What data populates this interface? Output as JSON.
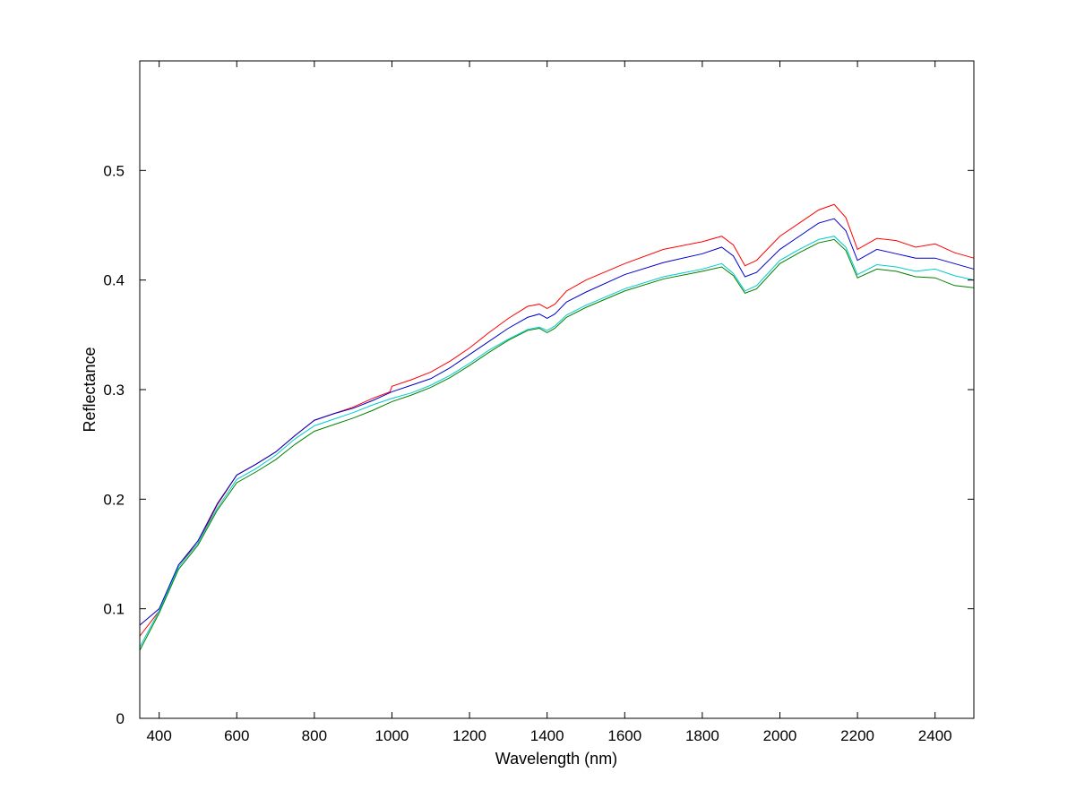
{
  "chart_data": {
    "type": "line",
    "title": "",
    "xlabel": "Wavelength (nm)",
    "ylabel": "Reflectance",
    "xlim": [
      350,
      2500
    ],
    "ylim": [
      0,
      0.6
    ],
    "xticks": [
      400,
      600,
      800,
      1000,
      1200,
      1400,
      1600,
      1800,
      2000,
      2200,
      2400
    ],
    "yticks": [
      0,
      0.1,
      0.2,
      0.3,
      0.4,
      0.5
    ],
    "grid": false,
    "legend": "none",
    "series": [
      {
        "color": "#ff0000",
        "points": [
          [
            350,
            0.075
          ],
          [
            400,
            0.098
          ],
          [
            450,
            0.14
          ],
          [
            500,
            0.16
          ],
          [
            550,
            0.195
          ],
          [
            600,
            0.222
          ],
          [
            650,
            0.232
          ],
          [
            700,
            0.243
          ],
          [
            750,
            0.258
          ],
          [
            800,
            0.272
          ],
          [
            850,
            0.278
          ],
          [
            900,
            0.284
          ],
          [
            950,
            0.292
          ],
          [
            995,
            0.298
          ],
          [
            1000,
            0.303
          ],
          [
            1050,
            0.309
          ],
          [
            1100,
            0.316
          ],
          [
            1150,
            0.326
          ],
          [
            1200,
            0.338
          ],
          [
            1250,
            0.352
          ],
          [
            1300,
            0.365
          ],
          [
            1350,
            0.376
          ],
          [
            1380,
            0.378
          ],
          [
            1400,
            0.374
          ],
          [
            1420,
            0.378
          ],
          [
            1450,
            0.39
          ],
          [
            1500,
            0.4
          ],
          [
            1600,
            0.415
          ],
          [
            1700,
            0.428
          ],
          [
            1800,
            0.435
          ],
          [
            1850,
            0.44
          ],
          [
            1880,
            0.432
          ],
          [
            1910,
            0.413
          ],
          [
            1940,
            0.418
          ],
          [
            2000,
            0.44
          ],
          [
            2050,
            0.452
          ],
          [
            2100,
            0.464
          ],
          [
            2140,
            0.469
          ],
          [
            2170,
            0.457
          ],
          [
            2200,
            0.428
          ],
          [
            2250,
            0.438
          ],
          [
            2300,
            0.436
          ],
          [
            2350,
            0.43
          ],
          [
            2400,
            0.433
          ],
          [
            2450,
            0.425
          ],
          [
            2500,
            0.42
          ]
        ]
      },
      {
        "color": "#0000cc",
        "points": [
          [
            350,
            0.085
          ],
          [
            400,
            0.1
          ],
          [
            450,
            0.14
          ],
          [
            500,
            0.162
          ],
          [
            550,
            0.196
          ],
          [
            600,
            0.222
          ],
          [
            650,
            0.232
          ],
          [
            700,
            0.243
          ],
          [
            750,
            0.258
          ],
          [
            800,
            0.272
          ],
          [
            850,
            0.278
          ],
          [
            900,
            0.283
          ],
          [
            950,
            0.29
          ],
          [
            1000,
            0.298
          ],
          [
            1050,
            0.304
          ],
          [
            1100,
            0.31
          ],
          [
            1150,
            0.32
          ],
          [
            1200,
            0.332
          ],
          [
            1250,
            0.344
          ],
          [
            1300,
            0.356
          ],
          [
            1350,
            0.366
          ],
          [
            1380,
            0.369
          ],
          [
            1400,
            0.365
          ],
          [
            1420,
            0.369
          ],
          [
            1450,
            0.38
          ],
          [
            1500,
            0.389
          ],
          [
            1600,
            0.405
          ],
          [
            1700,
            0.416
          ],
          [
            1800,
            0.424
          ],
          [
            1850,
            0.43
          ],
          [
            1880,
            0.422
          ],
          [
            1910,
            0.403
          ],
          [
            1940,
            0.407
          ],
          [
            2000,
            0.428
          ],
          [
            2050,
            0.44
          ],
          [
            2100,
            0.452
          ],
          [
            2140,
            0.456
          ],
          [
            2170,
            0.445
          ],
          [
            2200,
            0.418
          ],
          [
            2250,
            0.428
          ],
          [
            2300,
            0.424
          ],
          [
            2350,
            0.42
          ],
          [
            2400,
            0.42
          ],
          [
            2450,
            0.415
          ],
          [
            2500,
            0.41
          ]
        ]
      },
      {
        "color": "#00cccc",
        "points": [
          [
            350,
            0.065
          ],
          [
            400,
            0.098
          ],
          [
            450,
            0.138
          ],
          [
            500,
            0.16
          ],
          [
            550,
            0.192
          ],
          [
            600,
            0.218
          ],
          [
            650,
            0.228
          ],
          [
            700,
            0.24
          ],
          [
            750,
            0.255
          ],
          [
            800,
            0.267
          ],
          [
            850,
            0.273
          ],
          [
            900,
            0.279
          ],
          [
            950,
            0.286
          ],
          [
            1000,
            0.292
          ],
          [
            1050,
            0.297
          ],
          [
            1100,
            0.304
          ],
          [
            1150,
            0.313
          ],
          [
            1200,
            0.324
          ],
          [
            1250,
            0.336
          ],
          [
            1300,
            0.346
          ],
          [
            1350,
            0.355
          ],
          [
            1380,
            0.357
          ],
          [
            1400,
            0.354
          ],
          [
            1420,
            0.358
          ],
          [
            1450,
            0.368
          ],
          [
            1500,
            0.377
          ],
          [
            1600,
            0.392
          ],
          [
            1700,
            0.403
          ],
          [
            1800,
            0.41
          ],
          [
            1850,
            0.415
          ],
          [
            1880,
            0.406
          ],
          [
            1910,
            0.39
          ],
          [
            1940,
            0.395
          ],
          [
            2000,
            0.418
          ],
          [
            2050,
            0.428
          ],
          [
            2100,
            0.437
          ],
          [
            2140,
            0.44
          ],
          [
            2170,
            0.43
          ],
          [
            2200,
            0.405
          ],
          [
            2250,
            0.414
          ],
          [
            2300,
            0.412
          ],
          [
            2350,
            0.408
          ],
          [
            2400,
            0.41
          ],
          [
            2450,
            0.404
          ],
          [
            2500,
            0.4
          ]
        ]
      },
      {
        "color": "#008000",
        "points": [
          [
            350,
            0.062
          ],
          [
            400,
            0.096
          ],
          [
            450,
            0.136
          ],
          [
            500,
            0.158
          ],
          [
            550,
            0.19
          ],
          [
            600,
            0.215
          ],
          [
            650,
            0.225
          ],
          [
            700,
            0.236
          ],
          [
            750,
            0.25
          ],
          [
            800,
            0.262
          ],
          [
            850,
            0.268
          ],
          [
            900,
            0.274
          ],
          [
            950,
            0.281
          ],
          [
            1000,
            0.289
          ],
          [
            1050,
            0.295
          ],
          [
            1100,
            0.302
          ],
          [
            1150,
            0.311
          ],
          [
            1200,
            0.322
          ],
          [
            1250,
            0.334
          ],
          [
            1300,
            0.345
          ],
          [
            1350,
            0.354
          ],
          [
            1380,
            0.356
          ],
          [
            1400,
            0.352
          ],
          [
            1420,
            0.356
          ],
          [
            1450,
            0.366
          ],
          [
            1500,
            0.375
          ],
          [
            1600,
            0.39
          ],
          [
            1700,
            0.401
          ],
          [
            1800,
            0.408
          ],
          [
            1850,
            0.412
          ],
          [
            1880,
            0.404
          ],
          [
            1910,
            0.388
          ],
          [
            1940,
            0.392
          ],
          [
            2000,
            0.415
          ],
          [
            2050,
            0.425
          ],
          [
            2100,
            0.434
          ],
          [
            2140,
            0.437
          ],
          [
            2170,
            0.427
          ],
          [
            2200,
            0.402
          ],
          [
            2250,
            0.41
          ],
          [
            2300,
            0.408
          ],
          [
            2350,
            0.403
          ],
          [
            2400,
            0.402
          ],
          [
            2450,
            0.395
          ],
          [
            2500,
            0.393
          ]
        ]
      }
    ]
  }
}
